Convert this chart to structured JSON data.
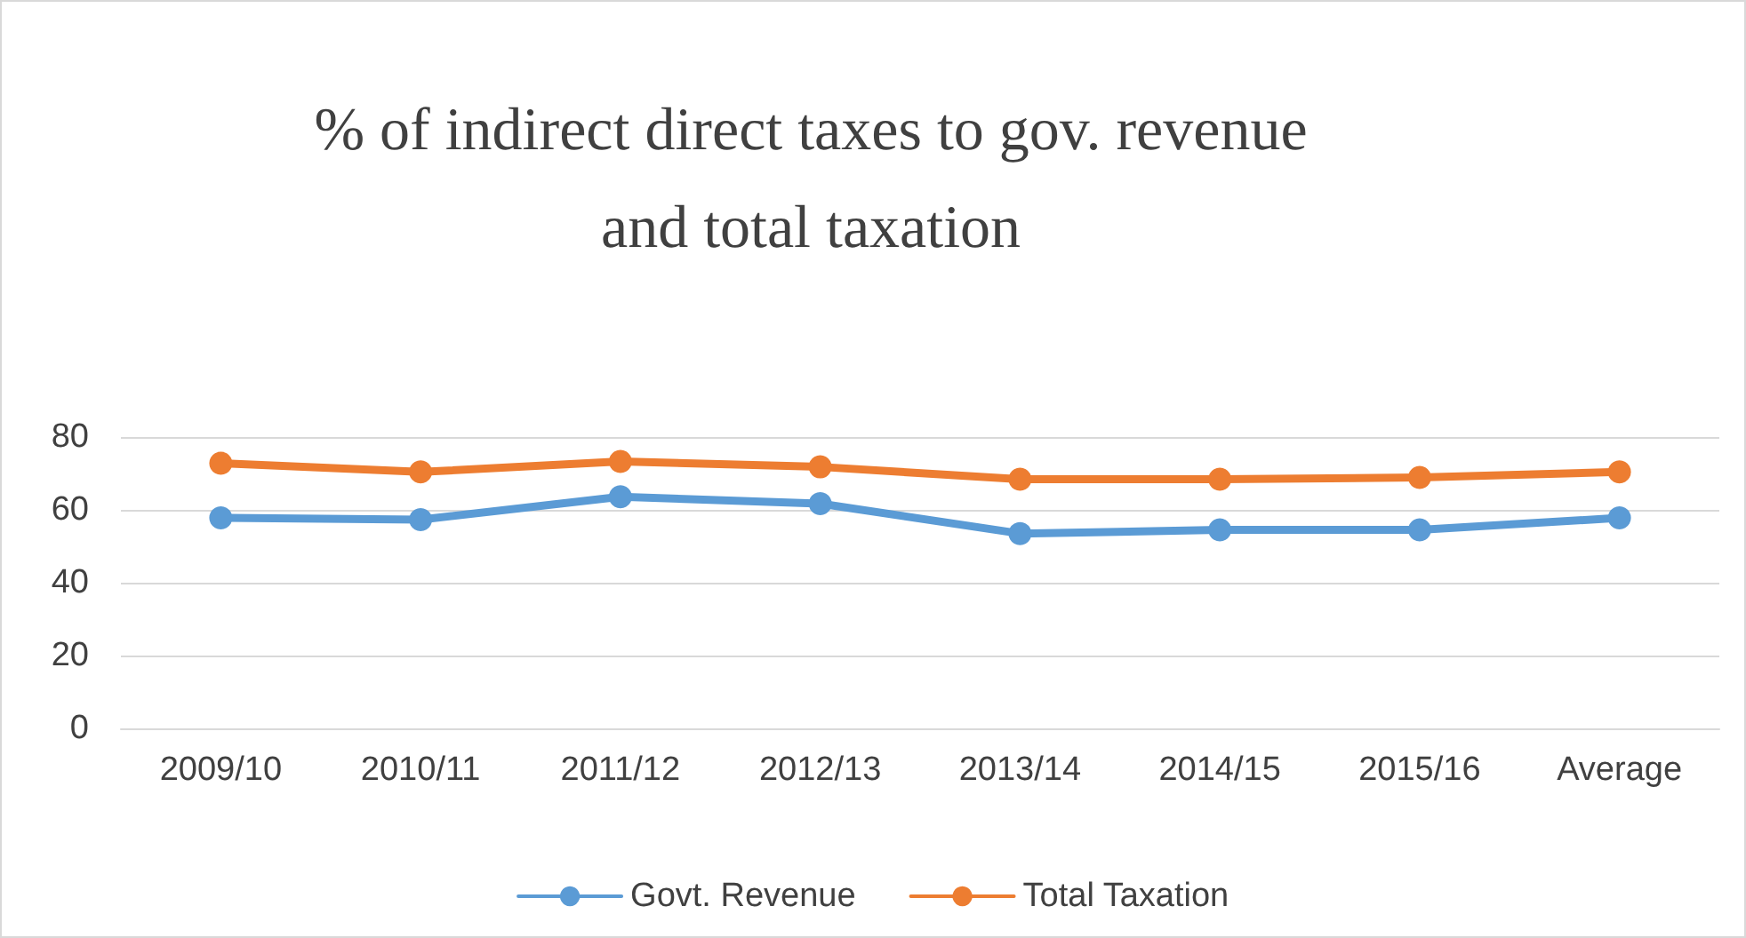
{
  "chart_data": {
    "type": "line",
    "title": "% of indirect direct taxes to gov. revenue\nand total taxation",
    "categories": [
      "2009/10",
      "2010/11",
      "2011/12",
      "2012/13",
      "2013/14",
      "2014/15",
      "2015/16",
      "Average"
    ],
    "series": [
      {
        "name": "Govt. Revenue",
        "color": "#5b9bd5",
        "values": [
          57.8,
          57.3,
          63.6,
          61.7,
          53.5,
          54.5,
          54.5,
          57.8
        ]
      },
      {
        "name": "Total Taxation",
        "color": "#ed7d31",
        "values": [
          72.8,
          70.4,
          73.3,
          71.8,
          68.4,
          68.4,
          68.9,
          70.4
        ]
      }
    ],
    "ylim": [
      0,
      80
    ],
    "yticks": [
      0,
      20,
      40,
      60,
      80
    ],
    "grid": "y",
    "legend": "bottom",
    "marker": "circle",
    "line_style": "solid"
  }
}
